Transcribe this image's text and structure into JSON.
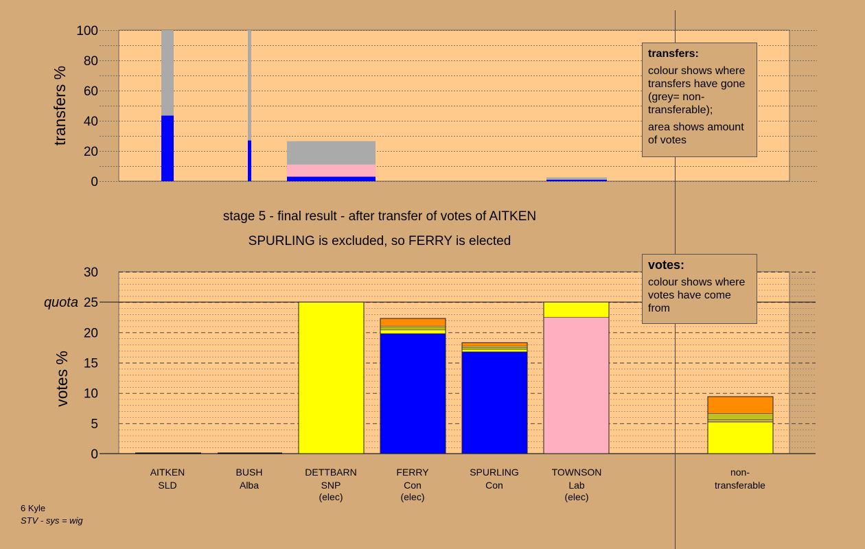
{
  "chart_data": [
    {
      "type": "bar",
      "name": "transfers",
      "ylabel": "transfers %",
      "ylim": [
        0,
        100
      ],
      "yticks": [
        0,
        20,
        40,
        60,
        80,
        100
      ],
      "series_note": "stacked; colour shows destination of transfers",
      "bars": [
        {
          "x": "AITKEN",
          "segments": [
            {
              "color": "#0000ff",
              "value": 43.5
            },
            {
              "color": "#aaaaaa",
              "value": 56.5
            }
          ]
        },
        {
          "x": "BUSH",
          "segments": [
            {
              "color": "#0000ff",
              "value": 27
            },
            {
              "color": "#aaaaaa",
              "value": 73
            }
          ]
        },
        {
          "x": "DETTBARN",
          "segments": [
            {
              "color": "#0000ff",
              "value": 3
            },
            {
              "color": "#ffb0c0",
              "value": 8
            },
            {
              "color": "#aaaaaa",
              "value": 15.5
            }
          ]
        },
        {
          "x": "TOWNSON",
          "segments": [
            {
              "color": "#0000ff",
              "value": 1
            },
            {
              "color": "#aaaaaa",
              "value": 1.5
            }
          ]
        }
      ]
    },
    {
      "type": "bar",
      "name": "votes",
      "ylabel": "votes %",
      "ylim": [
        0,
        30
      ],
      "yticks": [
        0,
        5,
        10,
        15,
        20,
        25,
        30
      ],
      "quota": 25,
      "quota_label": "quota",
      "categories": [
        {
          "name": "AITKEN",
          "party": "SLD",
          "status": ""
        },
        {
          "name": "BUSH",
          "party": "Alba",
          "status": ""
        },
        {
          "name": "DETTBARN",
          "party": "SNP",
          "status": "(elec)"
        },
        {
          "name": "FERRY",
          "party": "Con",
          "status": "(elec)"
        },
        {
          "name": "SPURLING",
          "party": "Con",
          "status": ""
        },
        {
          "name": "TOWNSON",
          "party": "Lab",
          "status": "(elec)"
        },
        {
          "name": "non-",
          "party": "transferable",
          "status": ""
        }
      ],
      "stacks": [
        [],
        [],
        [
          {
            "color": "#ffff00",
            "value": 25
          }
        ],
        [
          {
            "color": "#0000ff",
            "value": 19.8
          },
          {
            "color": "#ffff00",
            "value": 0.6
          },
          {
            "color": "#c0c020",
            "value": 0.4
          },
          {
            "color": "#ffff00",
            "value": 0.2
          },
          {
            "color": "#ff8c00",
            "value": 1.3
          }
        ],
        [
          {
            "color": "#0000ff",
            "value": 16.8
          },
          {
            "color": "#ffff00",
            "value": 0.4
          },
          {
            "color": "#c0c020",
            "value": 0.3
          },
          {
            "color": "#ffff00",
            "value": 0.2
          },
          {
            "color": "#ff8c00",
            "value": 0.6
          }
        ],
        [
          {
            "color": "#ffb0c0",
            "value": 22.5
          },
          {
            "color": "#ffff00",
            "value": 2.5
          }
        ],
        [
          {
            "color": "#ffff00",
            "value": 5.2
          },
          {
            "color": "#ffb0c0",
            "value": 0.2
          },
          {
            "color": "#ffff00",
            "value": 0.2
          },
          {
            "color": "#c0c020",
            "value": 1.0
          },
          {
            "color": "#ff8c00",
            "value": 2.8
          }
        ]
      ]
    }
  ],
  "captions": {
    "line1": "stage 5 - final result - after transfer of votes of AITKEN",
    "line2": "SPURLING is excluded, so FERRY is elected"
  },
  "legends": {
    "transfers": {
      "title": "transfers:",
      "p1": "colour shows where transfers have gone (grey= non-transferable);",
      "p2": "area shows amount of votes"
    },
    "votes": {
      "title": "votes:",
      "p1": "colour shows where votes have come from"
    }
  },
  "footer": {
    "line1": "6 Kyle",
    "line2": "STV - sys = wig"
  },
  "colors": {
    "background": "#d4aa78",
    "plot_bg": "#ffca8c",
    "accent_blue": "#0000ff",
    "grey": "#aaaaaa"
  }
}
